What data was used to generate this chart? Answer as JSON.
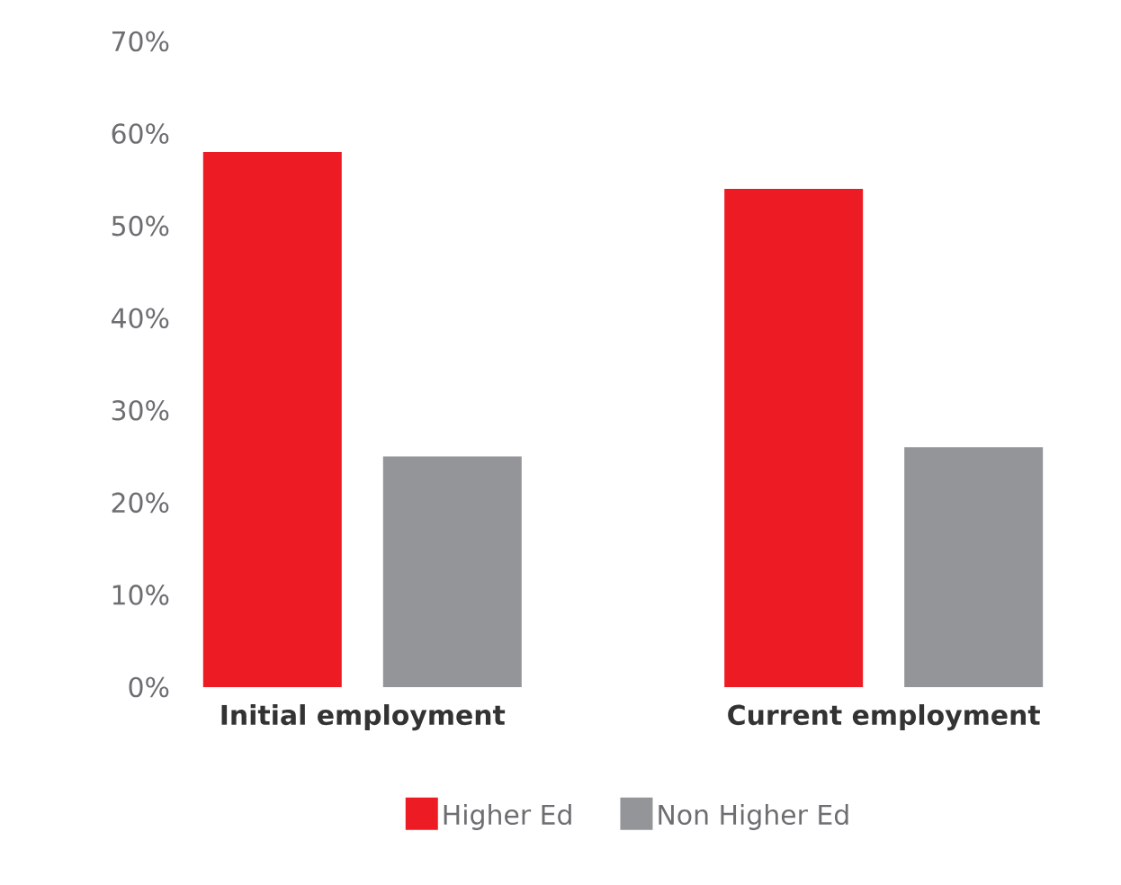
{
  "chart_data": {
    "type": "bar",
    "categories": [
      "Initial employment",
      "Current employment"
    ],
    "series": [
      {
        "name": "Higher Ed",
        "color": "#ed1c24",
        "values": [
          58,
          54
        ]
      },
      {
        "name": "Non Higher Ed",
        "color": "#939598",
        "values": [
          25,
          26
        ]
      }
    ],
    "ylim": [
      0,
      70
    ],
    "yticks": [
      {
        "value": 0,
        "label": "0%"
      },
      {
        "value": 10,
        "label": "10%"
      },
      {
        "value": 20,
        "label": "20%"
      },
      {
        "value": 30,
        "label": "30%"
      },
      {
        "value": 40,
        "label": "40%"
      },
      {
        "value": 50,
        "label": "50%"
      },
      {
        "value": 60,
        "label": "60%"
      },
      {
        "value": 70,
        "label": "70%"
      }
    ],
    "grid": false,
    "legend": "bottom"
  }
}
